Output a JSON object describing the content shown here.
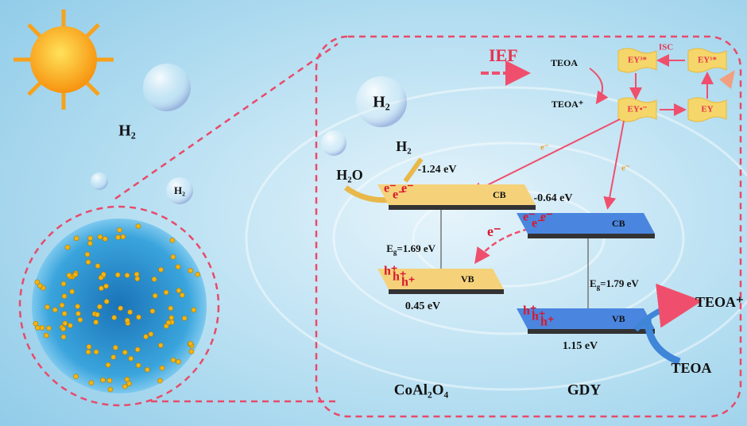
{
  "left": {
    "h2_large": "H₂",
    "h2_small": "H₂"
  },
  "inset": {
    "ief": "IEF",
    "dye_cycle": {
      "teoa": "TEOA",
      "teoa_plus": "TEOA⁺",
      "ey3": "EY³*",
      "isc": "ISC",
      "ey1": "EY¹*",
      "ey_radical": "EY•⁻",
      "ey": "EY"
    },
    "h2_bubble": "H₂",
    "h2": "H₂",
    "h2o": "H₂O",
    "arrow_electrons": [
      "e⁻",
      "e⁻"
    ],
    "transfer_electron": "e⁻",
    "coal": {
      "name": "CoAl₂O₄",
      "cb_energy": "-1.24 eV",
      "cb": "CB",
      "vb": "VB",
      "vb_energy": "0.45 eV",
      "eg": {
        "symbol": "E",
        "sub": "g",
        "value": "=1.69 eV"
      },
      "electrons": [
        "e⁻",
        "e⁻",
        "e⁻"
      ],
      "holes": [
        "h⁺",
        "h⁺",
        "h⁺"
      ]
    },
    "gdy": {
      "name": "GDY",
      "cb_energy": "-0.64 eV",
      "cb": "CB",
      "vb": "VB",
      "vb_energy": "1.15 eV",
      "eg": {
        "symbol": "E",
        "sub": "g",
        "value": "=1.79 eV"
      },
      "electrons": [
        "e⁻",
        "e⁻",
        "e⁻"
      ],
      "holes": [
        "h⁺",
        "h⁺",
        "h⁺"
      ]
    },
    "sacrificial": {
      "teoa_plus": "TEOA⁺",
      "teoa": "TEOA"
    }
  }
}
